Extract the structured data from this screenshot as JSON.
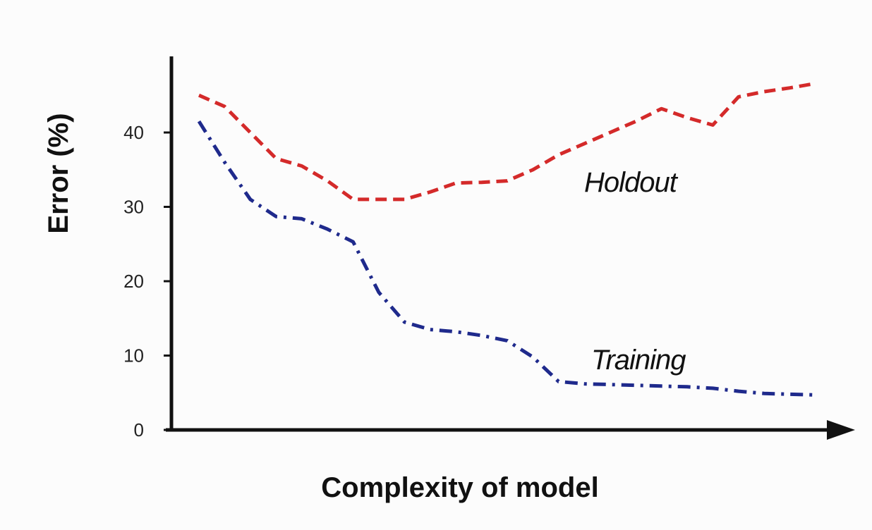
{
  "chart_data": {
    "type": "line",
    "title": "",
    "xlabel": "Complexity of model",
    "ylabel": "Error (%)",
    "ylim": [
      0,
      48
    ],
    "yticks": [
      0,
      10,
      20,
      30,
      40
    ],
    "x_ticks_shown": false,
    "grid": false,
    "legend": "none (series labelled inline)",
    "x_axis_arrow": true,
    "x": [
      1,
      2,
      3,
      4,
      5,
      6,
      7,
      8,
      9,
      10,
      11,
      12,
      13,
      14,
      15,
      16,
      17,
      18,
      19,
      20,
      21,
      22,
      23,
      24,
      25
    ],
    "series": [
      {
        "name": "Holdout",
        "color": "#d42a2a",
        "dash": "dashed",
        "values": [
          45,
          43.5,
          40,
          36.5,
          35.5,
          33.5,
          31,
          31,
          31,
          32,
          33.2,
          33.3,
          33.5,
          35,
          37,
          38.5,
          40,
          41.5,
          43.2,
          42,
          41,
          44.8,
          45.5,
          46,
          46.6
        ]
      },
      {
        "name": "Training",
        "color": "#1f2a8c",
        "dash": "dash-dot",
        "values": [
          41.5,
          36,
          31,
          28.7,
          28.4,
          27,
          25.3,
          18.5,
          14.5,
          13.5,
          13.2,
          12.7,
          12,
          9.8,
          6.5,
          6.2,
          6.1,
          6.0,
          5.9,
          5.8,
          5.6,
          5.2,
          4.9,
          4.8,
          4.7
        ]
      }
    ]
  }
}
